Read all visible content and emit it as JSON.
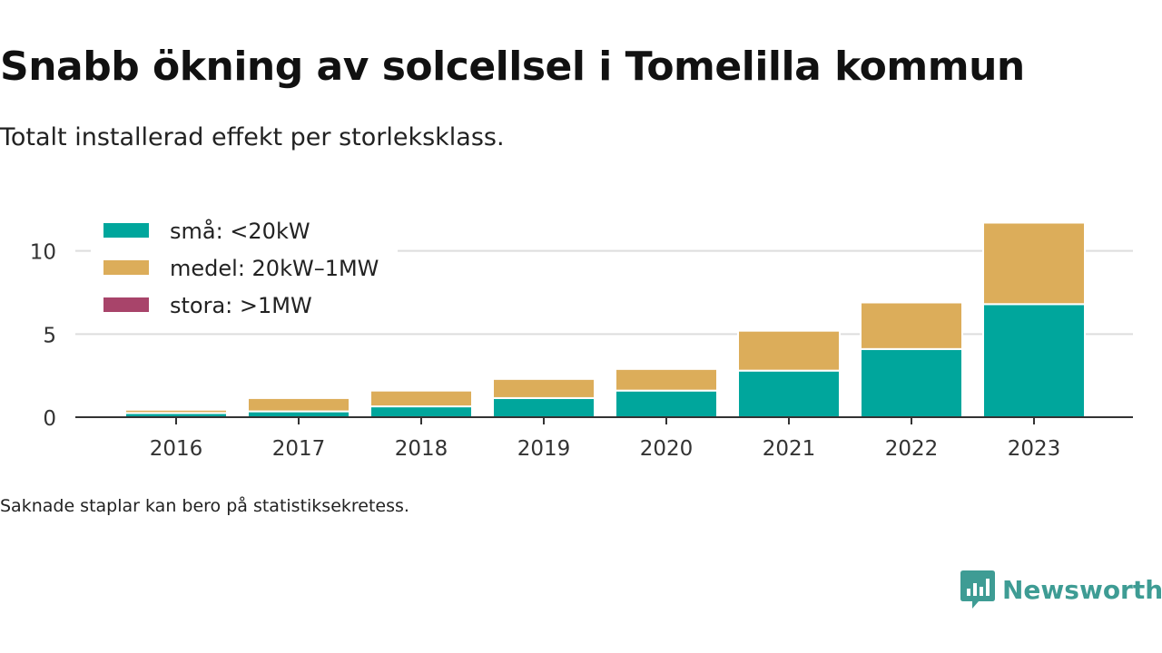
{
  "header": {
    "title": "Snabb ökning av solcellsel i Tomelilla kommun",
    "subtitle": "Totalt installerad effekt per storleksklass."
  },
  "footer": {
    "note": "Saknade staplar kan bero på statistiksekretess.",
    "brand": "Newsworthy"
  },
  "colors": {
    "small": "#00a69c",
    "medium": "#dcad5a",
    "large": "#a8446a",
    "brand": "#3e9c94"
  },
  "chart_data": {
    "type": "bar",
    "stacked": true,
    "categories": [
      "2016",
      "2017",
      "2018",
      "2019",
      "2020",
      "2021",
      "2022",
      "2023"
    ],
    "series": [
      {
        "name": "små: <20kW",
        "color": "#00a69c",
        "values": [
          0.25,
          0.35,
          0.65,
          1.15,
          1.6,
          2.8,
          4.1,
          6.8
        ]
      },
      {
        "name": "medel: 20kW–1MW",
        "color": "#dcad5a",
        "values": [
          0.2,
          0.8,
          0.95,
          1.15,
          1.3,
          2.4,
          2.8,
          4.9
        ]
      },
      {
        "name": "stora: >1MW",
        "color": "#a8446a",
        "values": [
          0,
          0,
          0,
          0,
          0,
          0,
          0,
          0
        ]
      }
    ],
    "yticks": [
      0,
      5,
      10
    ],
    "ylim": [
      0,
      12
    ],
    "grid": true,
    "legend": "top-left"
  }
}
